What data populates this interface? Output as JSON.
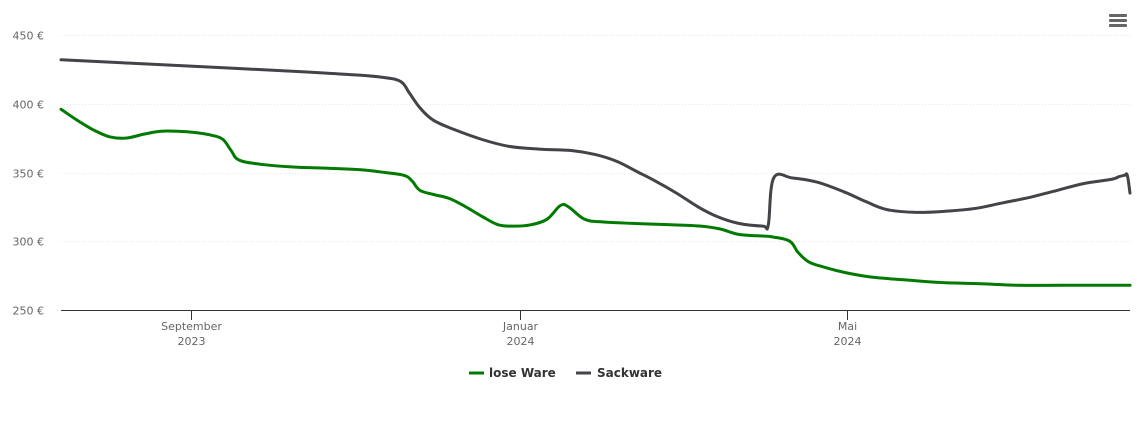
{
  "chart_data": {
    "type": "line",
    "title": "",
    "xlabel": "",
    "ylabel": "",
    "ylim": [
      250,
      450
    ],
    "y_ticks": [
      "250 €",
      "300 €",
      "350 €",
      "400 €",
      "450 €"
    ],
    "y_tick_values": [
      250,
      300,
      350,
      400,
      450
    ],
    "x_ticks": [
      {
        "date": "2023-09-01",
        "label": "September",
        "sublabel": "2023"
      },
      {
        "date": "2024-01-01",
        "label": "Januar",
        "sublabel": "2024"
      },
      {
        "date": "2024-05-01",
        "label": "Mai",
        "sublabel": "2024"
      }
    ],
    "xlim": [
      "2023-07-15",
      "2024-08-14"
    ],
    "grid": true,
    "legend": "bottom-center",
    "series": [
      {
        "name": "lose Ware",
        "color": "#007a00",
        "points": [
          [
            "2023-07-15",
            396
          ],
          [
            "2023-07-21",
            388
          ],
          [
            "2023-07-27",
            381
          ],
          [
            "2023-08-02",
            376
          ],
          [
            "2023-08-08",
            375
          ],
          [
            "2023-08-15",
            378
          ],
          [
            "2023-08-21",
            380
          ],
          [
            "2023-08-27",
            380
          ],
          [
            "2023-09-03",
            379
          ],
          [
            "2023-09-09",
            377
          ],
          [
            "2023-09-13",
            374
          ],
          [
            "2023-09-16",
            366
          ],
          [
            "2023-09-19",
            359
          ],
          [
            "2023-09-27",
            356
          ],
          [
            "2023-10-09",
            354
          ],
          [
            "2023-10-23",
            353
          ],
          [
            "2023-11-03",
            352
          ],
          [
            "2023-11-12",
            350
          ],
          [
            "2023-11-19",
            348
          ],
          [
            "2023-11-22",
            344
          ],
          [
            "2023-11-25",
            337
          ],
          [
            "2023-11-30",
            334
          ],
          [
            "2023-12-06",
            331
          ],
          [
            "2023-12-12",
            325
          ],
          [
            "2023-12-18",
            318
          ],
          [
            "2023-12-24",
            312
          ],
          [
            "2023-12-30",
            311
          ],
          [
            "2024-01-05",
            312
          ],
          [
            "2024-01-11",
            316
          ],
          [
            "2024-01-16",
            326
          ],
          [
            "2024-01-19",
            325
          ],
          [
            "2024-01-25",
            316
          ],
          [
            "2024-02-01",
            314
          ],
          [
            "2024-02-12",
            313
          ],
          [
            "2024-02-26",
            312
          ],
          [
            "2024-03-08",
            311
          ],
          [
            "2024-03-15",
            309
          ],
          [
            "2024-03-22",
            305
          ],
          [
            "2024-03-29",
            304
          ],
          [
            "2024-04-04",
            303
          ],
          [
            "2024-04-10",
            300
          ],
          [
            "2024-04-13",
            292
          ],
          [
            "2024-04-17",
            285
          ],
          [
            "2024-04-23",
            281
          ],
          [
            "2024-05-01",
            277
          ],
          [
            "2024-05-10",
            274
          ],
          [
            "2024-05-22",
            272
          ],
          [
            "2024-06-05",
            270
          ],
          [
            "2024-06-21",
            269
          ],
          [
            "2024-07-03",
            268
          ],
          [
            "2024-07-20",
            268
          ],
          [
            "2024-08-14",
            268
          ]
        ]
      },
      {
        "name": "Sackware",
        "color": "#434348",
        "points": [
          [
            "2023-07-15",
            432
          ],
          [
            "2023-08-15",
            429
          ],
          [
            "2023-09-15",
            426
          ],
          [
            "2023-10-15",
            423
          ],
          [
            "2023-11-01",
            421
          ],
          [
            "2023-11-12",
            419
          ],
          [
            "2023-11-18",
            416
          ],
          [
            "2023-11-21",
            408
          ],
          [
            "2023-11-25",
            397
          ],
          [
            "2023-11-30",
            388
          ],
          [
            "2023-12-08",
            381
          ],
          [
            "2023-12-18",
            374
          ],
          [
            "2023-12-28",
            369
          ],
          [
            "2024-01-08",
            367
          ],
          [
            "2024-01-20",
            366
          ],
          [
            "2024-01-29",
            363
          ],
          [
            "2024-02-06",
            358
          ],
          [
            "2024-02-13",
            351
          ],
          [
            "2024-02-20",
            344
          ],
          [
            "2024-02-28",
            335
          ],
          [
            "2024-03-07",
            325
          ],
          [
            "2024-03-14",
            318
          ],
          [
            "2024-03-22",
            313
          ],
          [
            "2024-03-31",
            311
          ],
          [
            "2024-04-02",
            312
          ],
          [
            "2024-04-04",
            346
          ],
          [
            "2024-04-11",
            346
          ],
          [
            "2024-04-20",
            343
          ],
          [
            "2024-04-30",
            336
          ],
          [
            "2024-05-08",
            329
          ],
          [
            "2024-05-16",
            323
          ],
          [
            "2024-05-27",
            321
          ],
          [
            "2024-06-08",
            322
          ],
          [
            "2024-06-18",
            324
          ],
          [
            "2024-06-28",
            328
          ],
          [
            "2024-07-08",
            332
          ],
          [
            "2024-07-18",
            337
          ],
          [
            "2024-07-28",
            342
          ],
          [
            "2024-08-07",
            345
          ],
          [
            "2024-08-10",
            347
          ],
          [
            "2024-08-12",
            348
          ],
          [
            "2024-08-13",
            348
          ],
          [
            "2024-08-14",
            335
          ]
        ]
      }
    ]
  },
  "menu": {
    "icon": "hamburger-menu-icon"
  }
}
